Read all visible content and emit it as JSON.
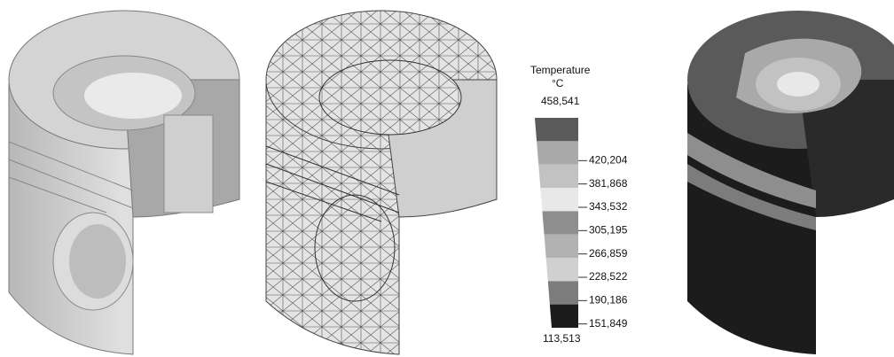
{
  "legend": {
    "title": "Temperature",
    "unit": "°C",
    "levels": [
      "458,541",
      "420,204",
      "381,868",
      "343,532",
      "305,195",
      "266,859",
      "228,522",
      "190,186",
      "151,849",
      "113,513"
    ],
    "band_colors": [
      "#5a5a5a",
      "#a9a9a9",
      "#c2c2c2",
      "#e8e8e8",
      "#8e8e8e",
      "#b2b2b2",
      "#d0d0d0",
      "#7c7c7c",
      "#1c1c1c"
    ]
  }
}
